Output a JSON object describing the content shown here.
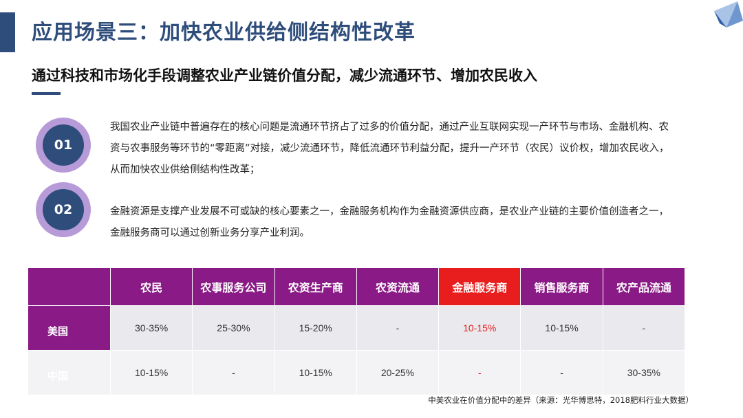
{
  "header": {
    "title": "应用场景三：加快农业供给侧结构性改革",
    "subtitle": "通过科技和市场化手段调整农业产业链价值分配，减少流通环节、增加农民收入"
  },
  "points": [
    {
      "number": "01",
      "text": "我国农业产业链中普遍存在的核心问题是流通环节挤占了过多的价值分配，通过产业互联网实现一产环节与市场、金融机构、农资与农事服务等环节的“零距离”对接，减少流通环节，降低流通环节利益分配，提升一产环节（农民）议价权，增加农民收入，从而加快农业供给侧结构性改革；"
    },
    {
      "number": "02",
      "text": "金融资源是支撑产业发展不可或缺的核心要素之一，金融服务机构作为金融资源供应商，是农业产业链的主要价值创造者之一，金融服务商可以通过创新业务分享产业利润。"
    }
  ],
  "table": {
    "columns": [
      "",
      "农民",
      "农事服务公司",
      "农资生产商",
      "农资流通",
      "金融服务商",
      "销售服务商",
      "农产品流通"
    ],
    "highlight_column": "金融服务商",
    "highlight_color": "#e81e1e",
    "header_color": "#8a1a86",
    "rows": [
      {
        "label": "美国",
        "cells": [
          "30-35%",
          "25-30%",
          "15-20%",
          "-",
          "10-15%",
          "10-15%",
          "-"
        ]
      },
      {
        "label": "中国",
        "cells": [
          "10-15%",
          "-",
          "10-15%",
          "20-25%",
          "-",
          "-",
          "30-35%"
        ]
      }
    ]
  },
  "caption": "中美农业在价值分配中的差异（来源：光华博思特，2018肥料行业大数据）"
}
